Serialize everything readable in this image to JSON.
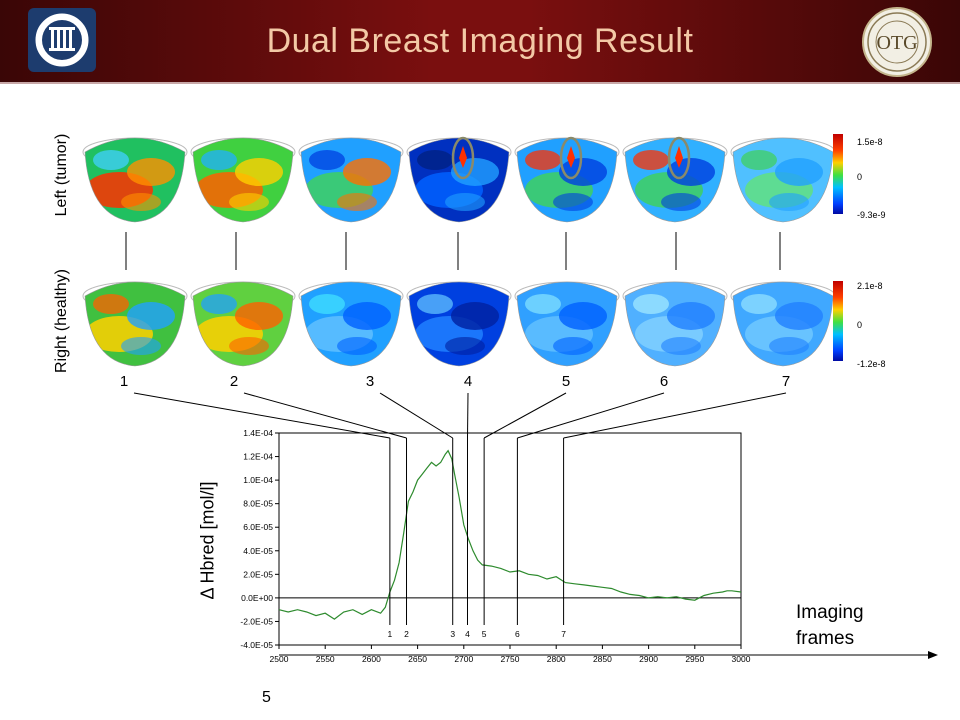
{
  "slide": {
    "title": "Dual Breast Imaging Result",
    "page_number": "5",
    "left_row_label": "Left (tumor)",
    "right_row_label": "Right (healthy)",
    "frame_numbers": [
      "1",
      "2",
      "3",
      "4",
      "5",
      "6",
      "7"
    ],
    "imaging_frames_label": [
      "Imaging",
      "frames"
    ],
    "left_colorbar": {
      "max": "1.5e-8",
      "mid": "0",
      "min": "-9.3e-9"
    },
    "right_colorbar": {
      "max": "2.1e-8",
      "mid": "0",
      "min": "-1.2e-8"
    },
    "colors": {
      "header_dark": "#3a0606",
      "header_mid": "#7a0f0f",
      "title": "#f3c9a6",
      "curve": "#2e8b2e"
    }
  },
  "chart_data": {
    "type": "line",
    "ylabel": "Δ Hbred [mol/l]",
    "xlabel": "",
    "xlim": [
      2500,
      3000
    ],
    "ylim": [
      -4e-05,
      0.00014
    ],
    "x_ticks": [
      "2500",
      "2550",
      "2600",
      "2650",
      "2700",
      "2750",
      "2800",
      "2850",
      "2900",
      "2950",
      "3000"
    ],
    "y_ticks": [
      "1.4E-04",
      "1.2E-04",
      "1.0E-04",
      "8.0E-05",
      "6.0E-05",
      "4.0E-05",
      "2.0E-05",
      "0.0E+00",
      "-2.0E-05",
      "-4.0E-05"
    ],
    "series": [
      {
        "x": [
          2500,
          2510,
          2520,
          2530,
          2540,
          2550,
          2560,
          2570,
          2580,
          2590,
          2600,
          2610,
          2615,
          2620,
          2625,
          2630,
          2635,
          2640,
          2645,
          2650,
          2655,
          2660,
          2665,
          2670,
          2675,
          2680,
          2683,
          2687,
          2690,
          2695,
          2700,
          2705,
          2710,
          2715,
          2720,
          2730,
          2740,
          2750,
          2760,
          2770,
          2780,
          2790,
          2800,
          2810,
          2820,
          2830,
          2840,
          2850,
          2860,
          2870,
          2880,
          2890,
          2900,
          2910,
          2920,
          2930,
          2940,
          2950,
          2960,
          2970,
          2980,
          2985,
          2990,
          3000
        ],
        "y": [
          -1e-05,
          -1.2e-05,
          -1e-05,
          -1.2e-05,
          -1.5e-05,
          -1.3e-05,
          -1.8e-05,
          -1.2e-05,
          -1e-05,
          -1.4e-05,
          -1e-05,
          -1.3e-05,
          -8e-06,
          5e-06,
          1.5e-05,
          3e-05,
          5.5e-05,
          8.2e-05,
          9e-05,
          0.0001,
          0.000105,
          0.00011,
          0.000115,
          0.000112,
          0.000115,
          0.000122,
          0.000125,
          0.000118,
          0.000105,
          8.5e-05,
          6.2e-05,
          5e-05,
          4e-05,
          3.2e-05,
          2.8e-05,
          2.7e-05,
          2.5e-05,
          2.2e-05,
          2.3e-05,
          2e-05,
          1.9e-05,
          1.6e-05,
          1.8e-05,
          1.3e-05,
          1.2e-05,
          1.1e-05,
          1e-05,
          9e-06,
          8e-06,
          5e-06,
          3e-06,
          2e-06,
          0.0,
          1e-06,
          0.0,
          1e-06,
          -1e-06,
          -2e-06,
          2e-06,
          4e-06,
          5e-06,
          6e-06,
          6e-06,
          5e-06
        ]
      }
    ],
    "frame_markers": [
      {
        "label": "1",
        "x": 2620
      },
      {
        "label": "2",
        "x": 2638
      },
      {
        "label": "3",
        "x": 2688
      },
      {
        "label": "4",
        "x": 2704
      },
      {
        "label": "5",
        "x": 2722
      },
      {
        "label": "6",
        "x": 2758
      },
      {
        "label": "7",
        "x": 2808
      }
    ],
    "grid": false,
    "legend": "none"
  }
}
